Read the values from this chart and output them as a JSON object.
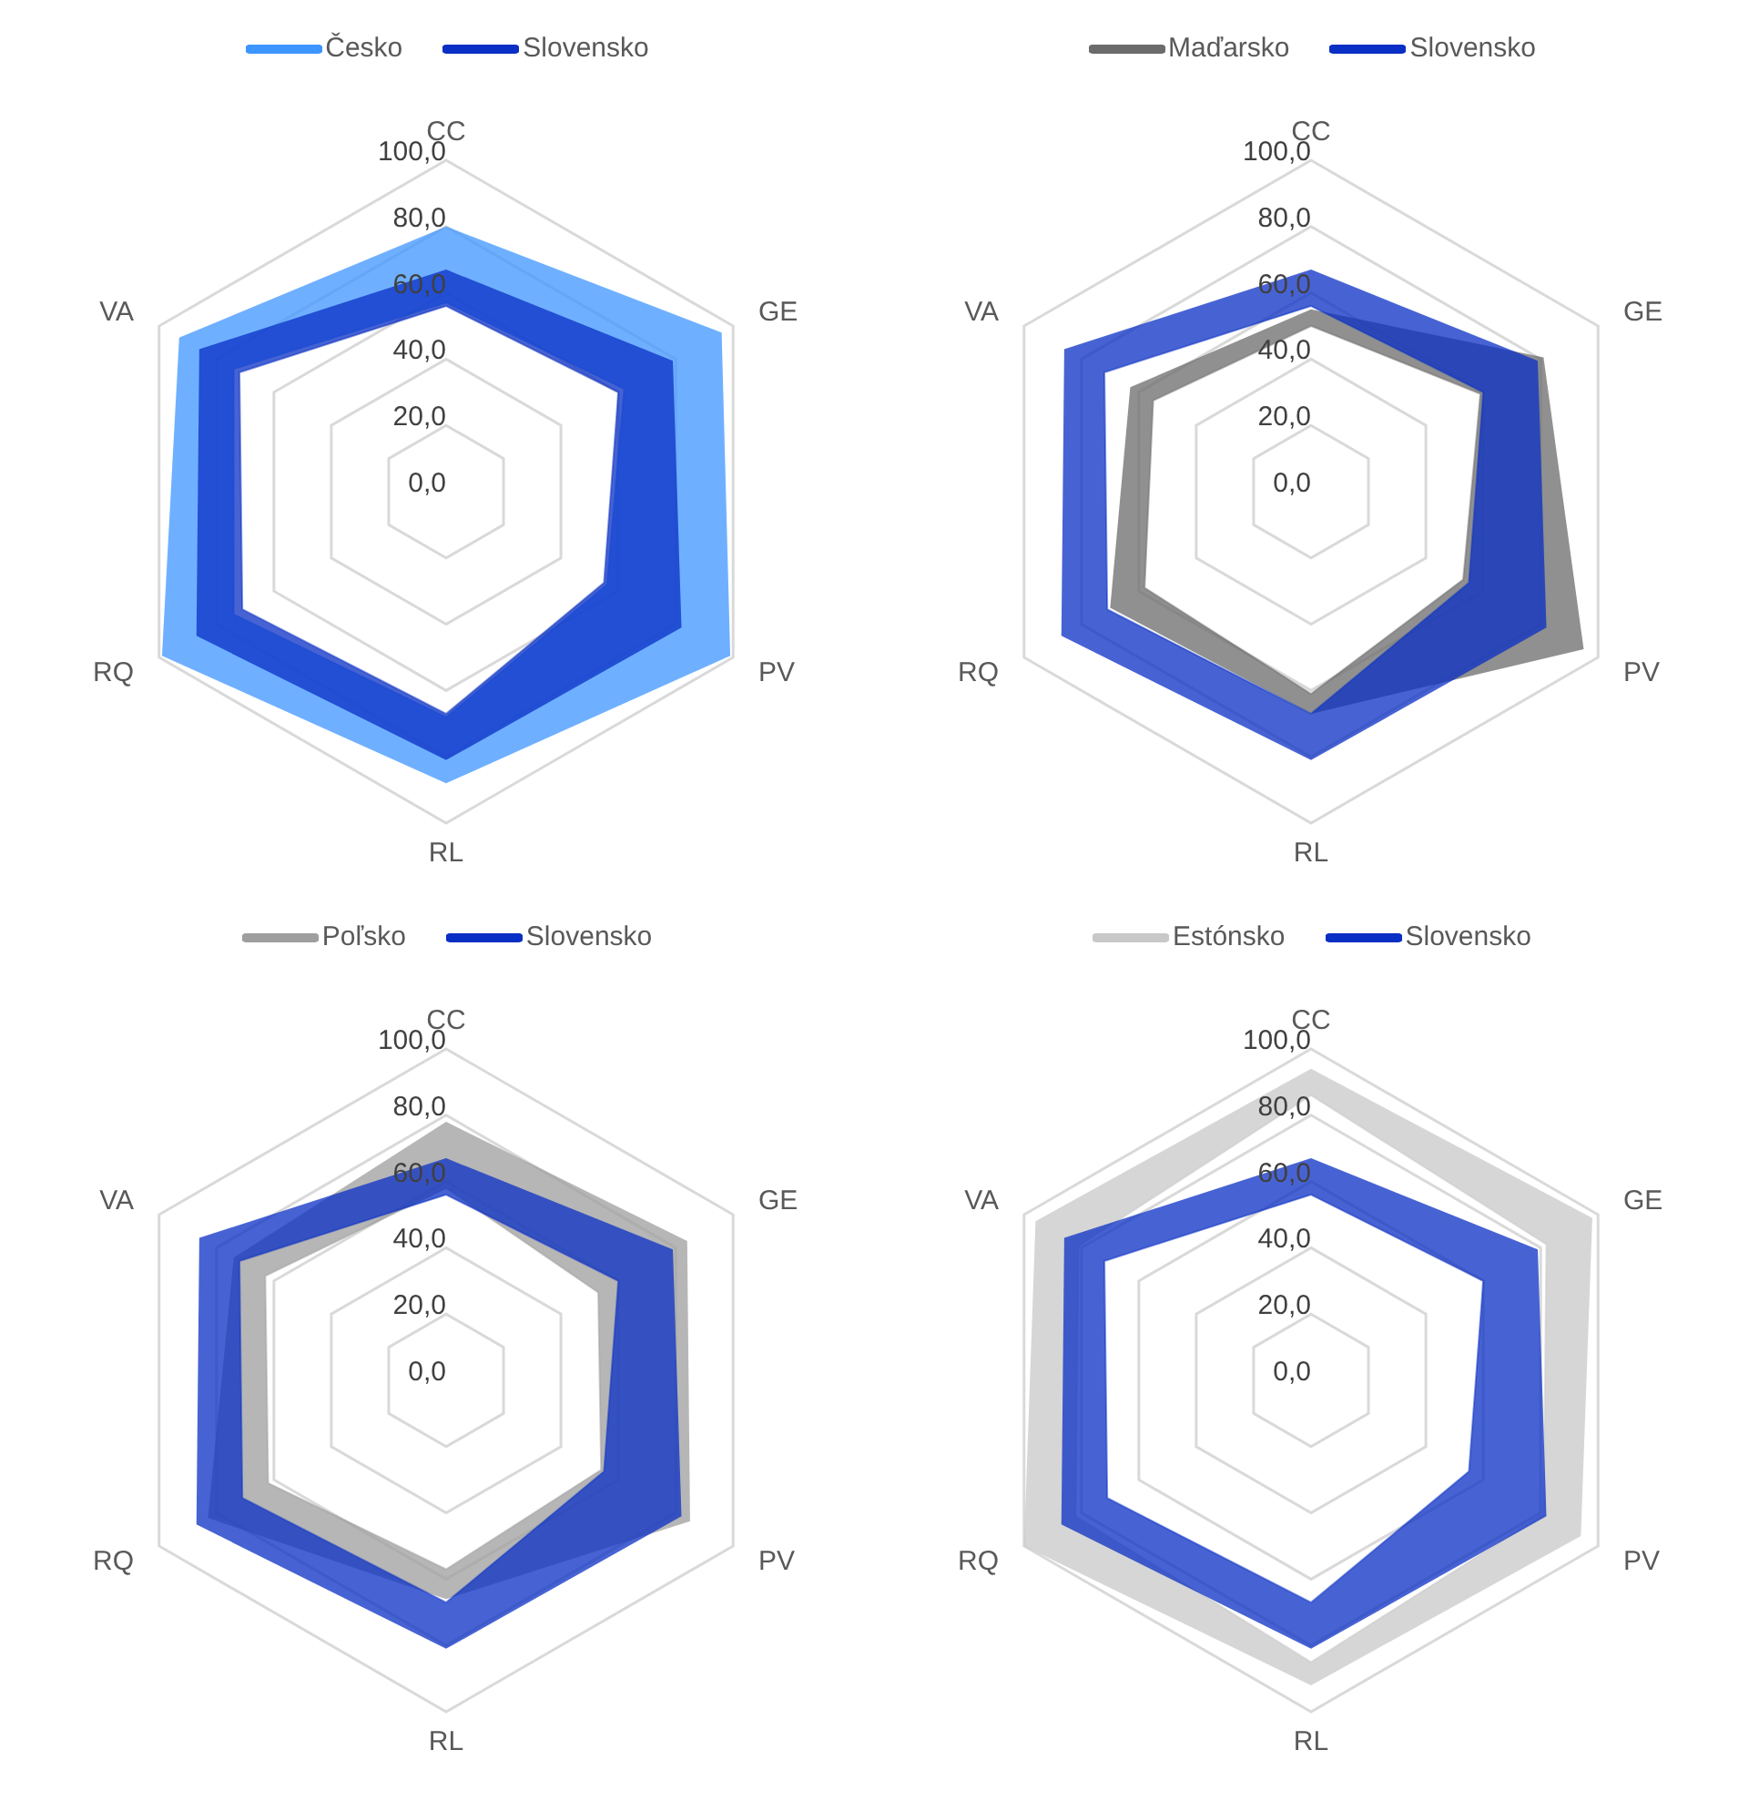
{
  "chart_data": [
    {
      "type": "radar",
      "categories": [
        "CC",
        "GE",
        "PV",
        "RL",
        "RQ",
        "VA"
      ],
      "ylim": [
        0,
        100
      ],
      "yticks": [
        {
          "value": 0,
          "label": "0,0"
        },
        {
          "value": 20,
          "label": "20,0"
        },
        {
          "value": 40,
          "label": "40,0"
        },
        {
          "value": 60,
          "label": "60,0"
        },
        {
          "value": 80,
          "label": "80,0"
        },
        {
          "value": 100,
          "label": "100,0"
        }
      ],
      "grid": true,
      "legend": "top",
      "series": [
        {
          "name": "Česko",
          "color": "#3d95ff",
          "values": [
            80,
            96,
            99,
            88,
            99,
            93
          ]
        },
        {
          "color": "#3d95ff",
          "values": [
            57,
            62,
            56,
            68,
            74,
            74
          ]
        },
        {
          "name": "Slovensko",
          "color": "#0a2fc4",
          "values": [
            67,
            79,
            82,
            81,
            87,
            86
          ]
        },
        {
          "color": "#0a2fc4",
          "values": [
            56,
            60,
            55,
            67,
            71,
            72
          ]
        }
      ]
    },
    {
      "type": "radar",
      "categories": [
        "CC",
        "GE",
        "PV",
        "RL",
        "RQ",
        "VA"
      ],
      "ylim": [
        0,
        100
      ],
      "yticks": [
        {
          "value": 0,
          "label": "0,0"
        },
        {
          "value": 20,
          "label": "20,0"
        },
        {
          "value": 40,
          "label": "40,0"
        },
        {
          "value": 60,
          "label": "60,0"
        },
        {
          "value": 80,
          "label": "80,0"
        },
        {
          "value": 100,
          "label": "100,0"
        }
      ],
      "grid": true,
      "legend": "top",
      "series": [
        {
          "name": "Maďarsko",
          "color": "#6b6b6b",
          "values": [
            55,
            81,
            95,
            67,
            70,
            63
          ]
        },
        {
          "color": "#6b6b6b",
          "values": [
            50,
            59,
            53,
            61,
            58,
            55
          ]
        },
        {
          "name": "Slovensko",
          "color": "#0a2fc4",
          "values": [
            67,
            79,
            82,
            81,
            87,
            86
          ]
        },
        {
          "color": "#0a2fc4",
          "values": [
            56,
            60,
            55,
            67,
            71,
            72
          ]
        }
      ]
    },
    {
      "type": "radar",
      "categories": [
        "CC",
        "GE",
        "PV",
        "RL",
        "RQ",
        "VA"
      ],
      "ylim": [
        0,
        100
      ],
      "yticks": [
        {
          "value": 0,
          "label": "0,0"
        },
        {
          "value": 20,
          "label": "20,0"
        },
        {
          "value": 40,
          "label": "40,0"
        },
        {
          "value": 60,
          "label": "60,0"
        },
        {
          "value": 80,
          "label": "80,0"
        },
        {
          "value": 100,
          "label": "100,0"
        }
      ],
      "grid": true,
      "legend": "top",
      "series": [
        {
          "name": "Poľsko",
          "color": "#9e9e9e",
          "values": [
            78,
            84,
            85,
            66,
            83,
            74
          ]
        },
        {
          "color": "#9e9e9e",
          "values": [
            58,
            53,
            54,
            57,
            62,
            63
          ]
        },
        {
          "name": "Slovensko",
          "color": "#0a2fc4",
          "values": [
            67,
            79,
            82,
            81,
            87,
            86
          ]
        },
        {
          "color": "#0a2fc4",
          "values": [
            56,
            60,
            55,
            67,
            71,
            72
          ]
        }
      ]
    },
    {
      "type": "radar",
      "categories": [
        "CC",
        "GE",
        "PV",
        "RL",
        "RQ",
        "VA"
      ],
      "ylim": [
        0,
        100
      ],
      "yticks": [
        {
          "value": 0,
          "label": "0,0"
        },
        {
          "value": 20,
          "label": "20,0"
        },
        {
          "value": 40,
          "label": "40,0"
        },
        {
          "value": 60,
          "label": "60,0"
        },
        {
          "value": 80,
          "label": "80,0"
        },
        {
          "value": 100,
          "label": "100,0"
        }
      ],
      "grid": true,
      "legend": "top",
      "series": [
        {
          "name": "Estónsko",
          "color": "#c8c8c8",
          "values": [
            94,
            98,
            94,
            92,
            100,
            96
          ]
        },
        {
          "color": "#c8c8c8",
          "values": [
            86,
            82,
            81,
            85,
            82,
            81
          ]
        },
        {
          "name": "Slovensko",
          "color": "#0a2fc4",
          "values": [
            67,
            79,
            82,
            81,
            87,
            86
          ]
        },
        {
          "color": "#0a2fc4",
          "values": [
            56,
            60,
            55,
            67,
            71,
            72
          ]
        }
      ]
    }
  ]
}
